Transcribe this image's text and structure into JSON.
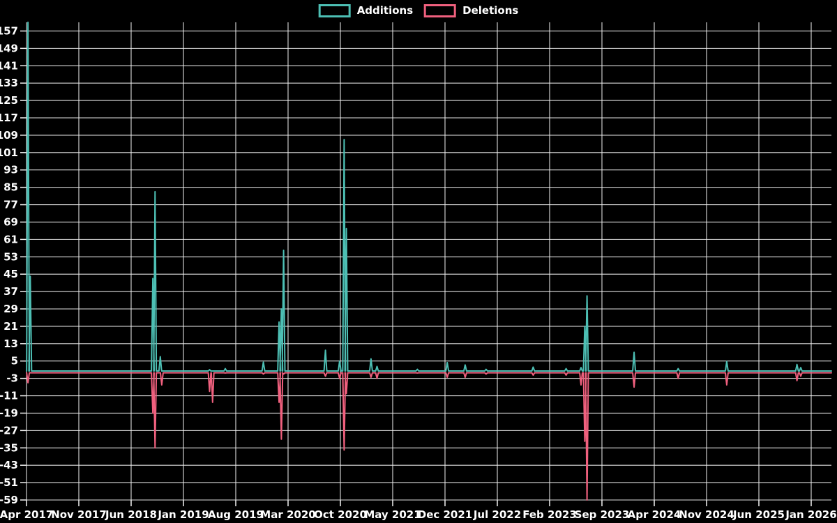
{
  "legend": {
    "items": [
      {
        "label": "Additions",
        "color": "#4dbfb4"
      },
      {
        "label": "Deletions",
        "color": "#f0607e"
      }
    ]
  },
  "chart_data": {
    "type": "line",
    "title": "",
    "legend_position": "top",
    "grid": true,
    "background_color": "#000000",
    "grid_color": "#f2f2f2",
    "text_color": "#ffffff",
    "x_axis": {
      "start_label": "Apr 2017",
      "tick_interval_months": 7,
      "tick_labels": [
        "Apr 2017",
        "Nov 2017",
        "Jun 2018",
        "Jan 2019",
        "Aug 2019",
        "Mar 2020",
        "Oct 2020",
        "May 2021",
        "Dec 2021",
        "Jul 2022",
        "Feb 2023",
        "Sep 2023",
        "Apr 2024",
        "Nov 2024",
        "Jun 2025",
        "Jan 2026"
      ],
      "tick_month_offsets": [
        0,
        7,
        14,
        21,
        28,
        35,
        42,
        49,
        56,
        63,
        70,
        77,
        84,
        91,
        98,
        105
      ],
      "domain_months": [
        0,
        107.7
      ]
    },
    "y_axis": {
      "min": -59,
      "max": 161,
      "tick_step": 8,
      "tick_labels": [
        157,
        149,
        141,
        133,
        125,
        117,
        109,
        101,
        93,
        85,
        77,
        69,
        61,
        53,
        45,
        37,
        29,
        21,
        13,
        5,
        -3,
        -11,
        -19,
        -27,
        -35,
        -43,
        -51,
        -59
      ]
    },
    "series": [
      {
        "name": "Deletions",
        "color": "#f0607e",
        "baseline": 0,
        "spikes": [
          {
            "m": 0.2,
            "v": -5
          },
          {
            "m": 16.9,
            "v": -19
          },
          {
            "m": 17.2,
            "v": -35
          },
          {
            "m": 18.1,
            "v": -6
          },
          {
            "m": 24.5,
            "v": -9
          },
          {
            "m": 24.9,
            "v": -14
          },
          {
            "m": 26.6,
            "v": -0.5
          },
          {
            "m": 31.7,
            "v": -1
          },
          {
            "m": 33.8,
            "v": -14
          },
          {
            "m": 34.1,
            "v": -31
          },
          {
            "m": 34.4,
            "v": -1
          },
          {
            "m": 40.0,
            "v": -2
          },
          {
            "m": 41.9,
            "v": -3
          },
          {
            "m": 42.5,
            "v": -36
          },
          {
            "m": 42.8,
            "v": -10
          },
          {
            "m": 46.1,
            "v": -2.5
          },
          {
            "m": 46.9,
            "v": -3
          },
          {
            "m": 52.3,
            "v": -0.5
          },
          {
            "m": 56.3,
            "v": -2.5
          },
          {
            "m": 58.7,
            "v": -2.5
          },
          {
            "m": 61.5,
            "v": -1
          },
          {
            "m": 67.8,
            "v": -1.5
          },
          {
            "m": 72.2,
            "v": -1.5
          },
          {
            "m": 74.2,
            "v": -6
          },
          {
            "m": 74.7,
            "v": -32
          },
          {
            "m": 75.0,
            "v": -59
          },
          {
            "m": 81.3,
            "v": -7
          },
          {
            "m": 87.2,
            "v": -3
          },
          {
            "m": 93.7,
            "v": -6
          },
          {
            "m": 103.1,
            "v": -4
          },
          {
            "m": 103.6,
            "v": -2
          }
        ]
      },
      {
        "name": "Additions",
        "color": "#4dbfb4",
        "baseline": 0,
        "spikes": [
          {
            "m": 0.2,
            "v": 161
          },
          {
            "m": 0.5,
            "v": 44
          },
          {
            "m": 16.9,
            "v": 43
          },
          {
            "m": 17.2,
            "v": 83
          },
          {
            "m": 17.9,
            "v": 7
          },
          {
            "m": 24.5,
            "v": 1
          },
          {
            "m": 26.6,
            "v": 1.5
          },
          {
            "m": 31.7,
            "v": 4.5
          },
          {
            "m": 33.8,
            "v": 23
          },
          {
            "m": 34.1,
            "v": 29
          },
          {
            "m": 34.4,
            "v": 56
          },
          {
            "m": 40.0,
            "v": 10
          },
          {
            "m": 41.9,
            "v": 5
          },
          {
            "m": 42.5,
            "v": 107
          },
          {
            "m": 42.8,
            "v": 66
          },
          {
            "m": 46.1,
            "v": 6
          },
          {
            "m": 46.9,
            "v": 2.5
          },
          {
            "m": 52.3,
            "v": 1.2
          },
          {
            "m": 56.3,
            "v": 4.3
          },
          {
            "m": 58.7,
            "v": 3.2
          },
          {
            "m": 61.5,
            "v": 1.2
          },
          {
            "m": 67.8,
            "v": 2.2
          },
          {
            "m": 72.2,
            "v": 1.5
          },
          {
            "m": 74.2,
            "v": 2
          },
          {
            "m": 74.7,
            "v": 21
          },
          {
            "m": 75.0,
            "v": 35
          },
          {
            "m": 81.3,
            "v": 9
          },
          {
            "m": 87.2,
            "v": 1.5
          },
          {
            "m": 93.7,
            "v": 4.8
          },
          {
            "m": 103.1,
            "v": 3.4
          },
          {
            "m": 103.6,
            "v": 2
          }
        ]
      }
    ]
  }
}
